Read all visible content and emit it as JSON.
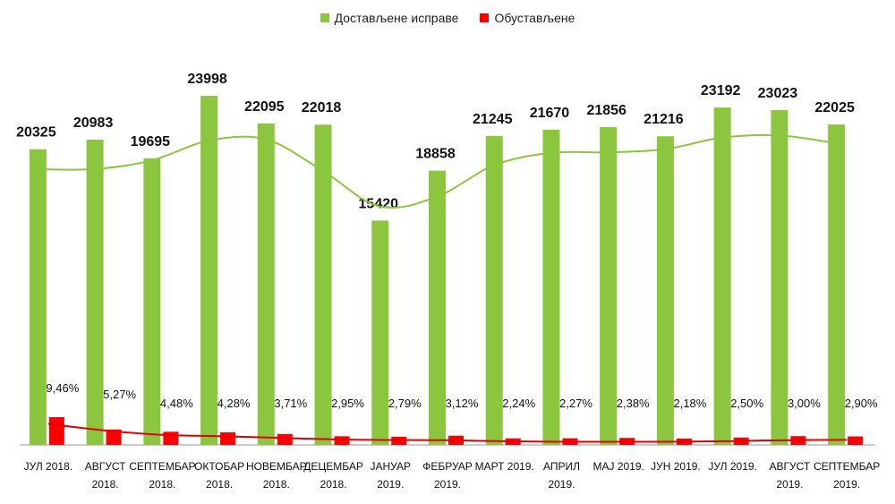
{
  "chart_data": {
    "type": "bar",
    "categories": [
      [
        "ЈУЛ 2018."
      ],
      [
        "АВГУСТ",
        "2018."
      ],
      [
        "СЕПТЕМБАР",
        "2018."
      ],
      [
        "ОКТОБАР",
        "2018."
      ],
      [
        "НОВЕМБАР",
        "2018."
      ],
      [
        "ДЕЦЕМБАР",
        "2018."
      ],
      [
        "ЈАНУАР",
        "2019."
      ],
      [
        "ФЕБРУАР",
        "2019."
      ],
      [
        "МАРТ 2019."
      ],
      [
        "АПРИЛ",
        "2019."
      ],
      [
        "МАЈ 2019."
      ],
      [
        "ЈУН 2019."
      ],
      [
        "ЈУЛ 2019."
      ],
      [
        "АВГУСТ",
        "2019."
      ],
      [
        "СЕПТЕМБАР",
        "2019."
      ]
    ],
    "series": [
      {
        "name": "Достављене исправе",
        "color": "#8CC63F",
        "values": [
          20325,
          20983,
          19695,
          23998,
          22095,
          22018,
          15420,
          18858,
          21245,
          21670,
          21856,
          21216,
          23192,
          23023,
          22025
        ],
        "labels": [
          "20325",
          "20983",
          "19695",
          "23998",
          "22095",
          "22018",
          "15420",
          "18858",
          "21245",
          "21670",
          "21856",
          "21216",
          "23192",
          "23023",
          "22025"
        ]
      },
      {
        "name": "Обустављене",
        "color": "#FF0000",
        "values": [
          9.46,
          5.27,
          4.48,
          4.28,
          3.71,
          2.95,
          2.79,
          3.12,
          2.24,
          2.27,
          2.38,
          2.18,
          2.5,
          3.0,
          2.9
        ],
        "labels": [
          "9,46%",
          "5,27%",
          "4,48%",
          "4,28%",
          "3,71%",
          "2,95%",
          "2,79%",
          "3,12%",
          "2,24%",
          "2,27%",
          "2,38%",
          "2,18%",
          "2,50%",
          "3,00%",
          "2,90%"
        ]
      }
    ],
    "trendlines": [
      {
        "series": "Достављене исправе",
        "color": "#8CC63F",
        "kind": "polynomial"
      },
      {
        "series": "Обустављене",
        "color": "#E00000",
        "kind": "polynomial"
      }
    ],
    "legend_position": "top-center",
    "grid": false
  }
}
